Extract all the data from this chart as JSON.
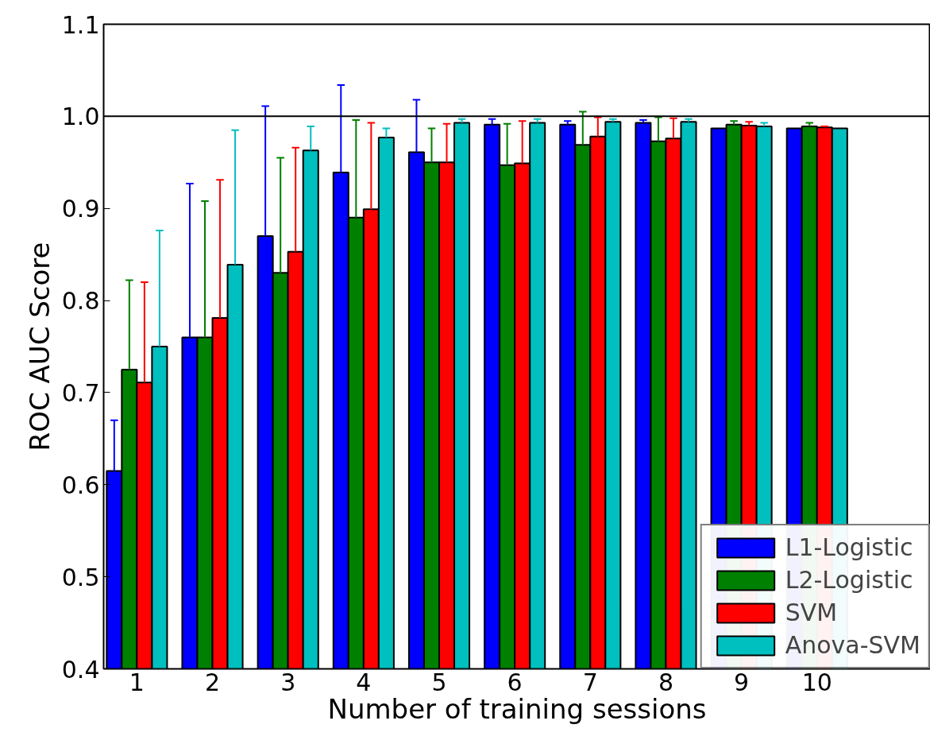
{
  "chart_data": {
    "type": "bar",
    "xlabel": "Number of training sessions",
    "ylabel": "ROC AUC Score",
    "categories": [
      "1",
      "2",
      "3",
      "4",
      "5",
      "6",
      "7",
      "8",
      "9",
      "10"
    ],
    "series": [
      {
        "name": "L1-Logistic",
        "color": "#0000ff",
        "values": [
          0.615,
          0.76,
          0.87,
          0.939,
          0.961,
          0.991,
          0.991,
          0.993,
          0.987,
          0.987
        ],
        "errors": [
          [
            0.615,
            0.67
          ],
          [
            0.76,
            0.927
          ],
          [
            0.87,
            1.011
          ],
          [
            0.939,
            1.034
          ],
          [
            0.961,
            1.018
          ],
          [
            0.991,
            0.997
          ],
          [
            0.991,
            0.995
          ],
          [
            0.993,
            0.996
          ],
          null,
          null
        ]
      },
      {
        "name": "L2-Logistic",
        "color": "#008000",
        "values": [
          0.725,
          0.76,
          0.83,
          0.89,
          0.95,
          0.947,
          0.969,
          0.973,
          0.991,
          0.989
        ],
        "errors": [
          [
            0.725,
            0.822
          ],
          [
            0.76,
            0.908
          ],
          [
            0.83,
            0.955
          ],
          [
            0.89,
            0.996
          ],
          [
            0.95,
            0.987
          ],
          [
            0.947,
            0.992
          ],
          [
            0.969,
            1.005
          ],
          [
            0.973,
            0.999
          ],
          [
            0.991,
            0.995
          ],
          [
            0.989,
            0.993
          ]
        ]
      },
      {
        "name": "SVM",
        "color": "#ff0000",
        "values": [
          0.711,
          0.781,
          0.853,
          0.899,
          0.95,
          0.949,
          0.978,
          0.976,
          0.99,
          0.988
        ],
        "errors": [
          [
            0.711,
            0.82
          ],
          [
            0.781,
            0.931
          ],
          [
            0.853,
            0.966
          ],
          [
            0.899,
            0.993
          ],
          [
            0.95,
            0.992
          ],
          [
            0.949,
            0.995
          ],
          [
            0.978,
            0.999
          ],
          [
            0.976,
            0.998
          ],
          [
            0.99,
            0.994
          ],
          [
            0.988,
            0.989
          ]
        ]
      },
      {
        "name": "Anova-SVM",
        "color": "#00bfbf",
        "values": [
          0.75,
          0.839,
          0.963,
          0.977,
          0.993,
          0.993,
          0.994,
          0.994,
          0.989,
          0.987
        ],
        "errors": [
          [
            0.75,
            0.876
          ],
          [
            0.839,
            0.985
          ],
          [
            0.963,
            0.989
          ],
          [
            0.977,
            0.987
          ],
          [
            0.993,
            0.997
          ],
          [
            0.993,
            0.997
          ],
          [
            0.994,
            0.997
          ],
          [
            0.994,
            0.997
          ],
          [
            0.989,
            0.993
          ],
          null
        ]
      }
    ],
    "ylim": [
      0.4,
      1.1
    ],
    "yticks": [
      0.4,
      0.5,
      0.6,
      0.7,
      0.8,
      0.9,
      {
        "value": 1.0,
        "label": "1.0"
      },
      1.1
    ],
    "ref_lines": [
      {
        "axis": "y",
        "value": 1.0,
        "color": "#000000"
      }
    ],
    "grid": false,
    "legend": "bottom right"
  }
}
